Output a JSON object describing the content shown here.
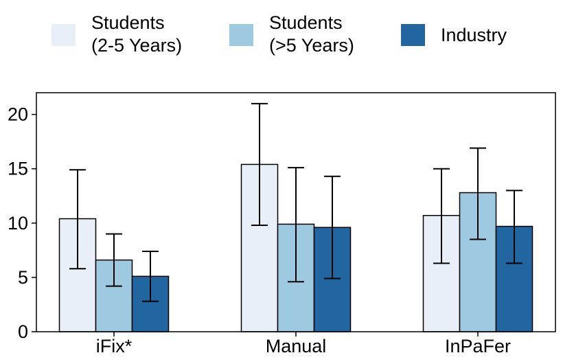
{
  "chart_data": {
    "type": "bar",
    "title": "",
    "xlabel": "",
    "ylabel": "",
    "ylim": [
      0,
      22
    ],
    "yticks": [
      0,
      5,
      10,
      15,
      20
    ],
    "grid": false,
    "legend_position": "top",
    "categories": [
      "iFix*",
      "Manual",
      "InPaFer"
    ],
    "series": [
      {
        "name": "Students (2-5 Years)",
        "label_lines": [
          "Students",
          "(2-5 Years)"
        ],
        "color": "#e8eff8",
        "values": [
          10.4,
          15.4,
          10.7
        ],
        "error_low": [
          5.8,
          9.8,
          6.3
        ],
        "error_high": [
          14.9,
          21.0,
          15.0
        ]
      },
      {
        "name": "Students (>5 Years)",
        "label_lines": [
          "Students",
          "(>5 Years)"
        ],
        "color": "#9ecae1",
        "values": [
          6.6,
          9.9,
          12.8
        ],
        "error_low": [
          4.2,
          4.6,
          8.5
        ],
        "error_high": [
          9.0,
          15.1,
          16.9
        ]
      },
      {
        "name": "Industry",
        "label_lines": [
          "Industry"
        ],
        "color": "#2166a0",
        "values": [
          5.1,
          9.6,
          9.7
        ],
        "error_low": [
          2.8,
          4.9,
          6.3
        ],
        "error_high": [
          7.4,
          14.3,
          13.0
        ]
      }
    ]
  }
}
